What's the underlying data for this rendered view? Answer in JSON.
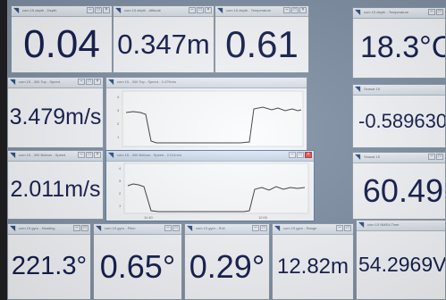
{
  "windows": {
    "depth": {
      "title": "com 15 depth - Depth",
      "value": "0.04"
    },
    "altitude": {
      "title": "com 15 depth - Altitude",
      "value": "0.347m"
    },
    "temp_mid": {
      "title": "com 15 depth - Temperature",
      "value": "0.61"
    },
    "temperature": {
      "title": "com 15 depth - Temperature",
      "value": "18.3°C"
    },
    "speed_top": {
      "title": "com 15 - 300 Top - Speed",
      "value": "3.479m/s"
    },
    "roll": {
      "title": "Seasat 15",
      "value": "-0.589630"
    },
    "speed_bottom": {
      "title": "com 15 - 300 Bottom - Speed",
      "value": "2.011m/s"
    },
    "pitch": {
      "title": "Seasat 15",
      "value": "60.49"
    },
    "heading": {
      "title": "com 15 gyro - Heading",
      "value": "221.3°"
    },
    "pitch_gyro": {
      "title": "com 15 gyro - Pitch",
      "value": "0.65°"
    },
    "roll_gyro": {
      "title": "com 15 gyro - Roll",
      "value": "0.29°"
    },
    "range": {
      "title": "com 15 gyro - Range",
      "value": "12.82m"
    },
    "seasat_a": {
      "title": "com 15 NMEA Time",
      "value": "54.2969V"
    }
  },
  "graph_top": {
    "title": "com 15 - 300 Top - Speed - 3.479m/s",
    "yticks": [
      "4",
      "3",
      "2",
      "1"
    ],
    "xticks": [
      "",
      ""
    ]
  },
  "graph_bottom": {
    "title": "com 15 - 300 Bottom - Speed - 2.011m/s",
    "yticks": [
      "4",
      "3",
      "2",
      "1"
    ],
    "xticks": [
      "11:40",
      "12:00"
    ]
  },
  "colors": {
    "value_text": "#101a4a",
    "title_icon": "#2a4f86",
    "desktop": "#7e8fa3"
  }
}
